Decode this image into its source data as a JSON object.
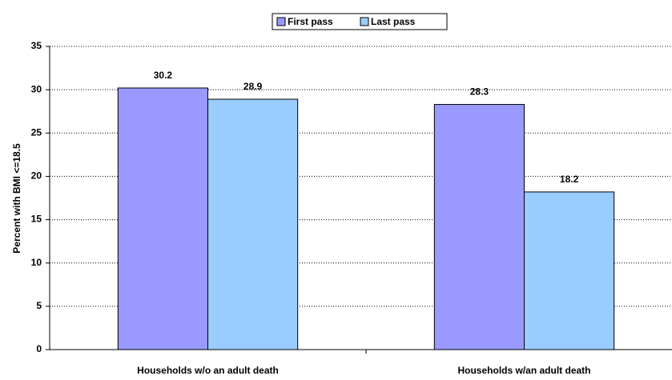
{
  "chart_data": {
    "type": "bar",
    "y_label": "Percent with BMI <=18.5",
    "categories": [
      "Households w/o an adult death",
      "Households w/an adult death"
    ],
    "series": [
      {
        "name": "First pass",
        "color": "#9999ff",
        "values": [
          30.2,
          28.3
        ]
      },
      {
        "name": "Last pass",
        "color": "#99ccff",
        "values": [
          28.9,
          18.2
        ]
      }
    ],
    "ylim": [
      0,
      35
    ],
    "yticks": [
      0,
      5,
      10,
      15,
      20,
      25,
      30,
      35
    ],
    "grid": true,
    "legend": "top"
  }
}
